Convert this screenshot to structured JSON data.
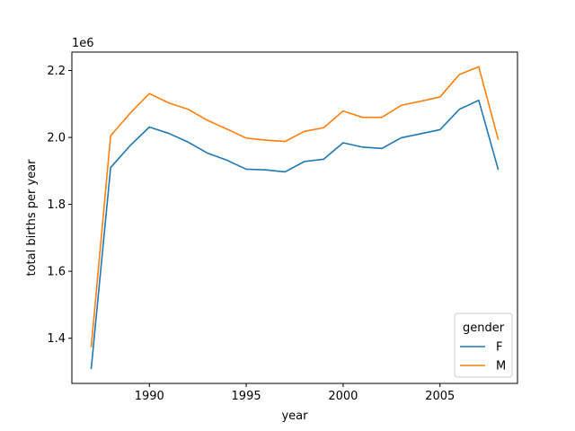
{
  "chart_data": {
    "type": "line",
    "title": "",
    "xlabel": "year",
    "ylabel": "total births per year",
    "y_scale_text": "1e6",
    "xlim": [
      1986.0,
      2009.0
    ],
    "ylim": [
      1.265,
      2.255
    ],
    "grid": false,
    "x_ticks": [
      1990,
      1995,
      2000,
      2005
    ],
    "x_tick_labels": [
      "1990",
      "1995",
      "2000",
      "2005"
    ],
    "y_ticks": [
      1.4,
      1.6,
      1.8,
      2.0,
      2.2
    ],
    "y_tick_labels": [
      "1.4",
      "1.6",
      "1.8",
      "2.0",
      "2.2"
    ],
    "x": [
      1987,
      1988,
      1989,
      1990,
      1991,
      1992,
      1993,
      1994,
      1995,
      1996,
      1997,
      1998,
      1999,
      2000,
      2001,
      2002,
      2003,
      2004,
      2005,
      2006,
      2007,
      2008
    ],
    "legend": {
      "title": "gender",
      "placement": "lower-right"
    },
    "series": [
      {
        "name": "F",
        "color": "#1f77b4",
        "values": [
          1.31,
          1.91,
          1.975,
          2.031,
          2.012,
          1.986,
          1.953,
          1.932,
          1.905,
          1.903,
          1.897,
          1.928,
          1.935,
          1.984,
          1.971,
          1.967,
          1.999,
          2.011,
          2.023,
          2.084,
          2.111,
          1.905
        ]
      },
      {
        "name": "M",
        "color": "#ff7f0e",
        "values": [
          1.375,
          2.005,
          2.072,
          2.131,
          2.103,
          2.084,
          2.051,
          2.025,
          1.998,
          1.992,
          1.988,
          2.018,
          2.029,
          2.079,
          2.06,
          2.06,
          2.096,
          2.108,
          2.121,
          2.188,
          2.211,
          1.995
        ]
      }
    ]
  }
}
